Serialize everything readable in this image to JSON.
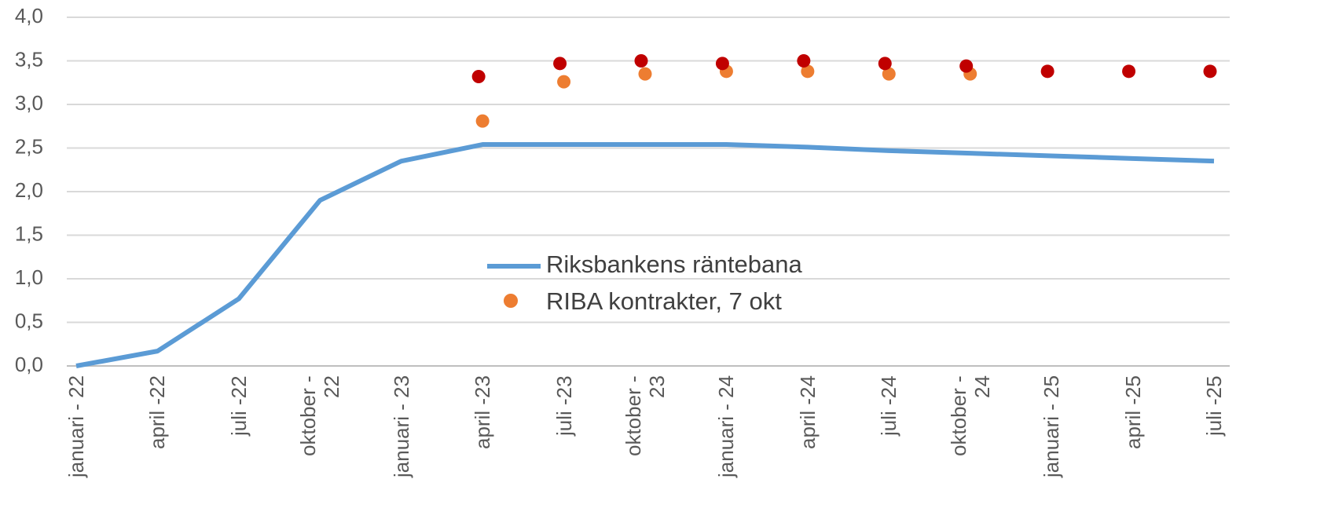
{
  "chart_data": {
    "type": "line",
    "categories": [
      "januari - 22",
      "april -22",
      "juli -22",
      "oktober - 22",
      "januari - 23",
      "april -23",
      "juli -23",
      "oktober - 23",
      "januari - 24",
      "april -24",
      "juli -24",
      "oktober - 24",
      "januari - 25",
      "april -25",
      "juli -25"
    ],
    "series": [
      {
        "name": "Riksbankens räntebana",
        "color": "#5b9bd5",
        "kind": "line",
        "values": [
          0,
          0.17,
          0.77,
          1.9,
          2.35,
          2.54,
          2.54,
          2.54,
          2.54,
          2.51,
          2.47,
          2.44,
          2.41,
          2.38,
          2.35
        ]
      },
      {
        "name": "RIBA kontrakter, 7 okt",
        "color": "#ed7d31",
        "kind": "dots",
        "values": [
          null,
          null,
          null,
          null,
          null,
          2.81,
          3.26,
          3.35,
          3.38,
          3.38,
          3.35,
          3.35,
          null,
          null,
          null
        ]
      },
      {
        "color": "#c00000",
        "kind": "dots",
        "values": [
          null,
          null,
          null,
          null,
          null,
          3.32,
          3.47,
          3.5,
          3.47,
          3.5,
          3.47,
          3.44,
          3.38,
          3.38,
          3.38
        ]
      }
    ],
    "ylim": [
      0,
      4
    ],
    "yticks": [
      {
        "value": 0,
        "label": "0,0"
      },
      {
        "value": 0.5,
        "label": "0,5"
      },
      {
        "value": 1,
        "label": "1,0"
      },
      {
        "value": 1.5,
        "label": "1,5"
      },
      {
        "value": 2,
        "label": "2,0"
      },
      {
        "value": 2.5,
        "label": "2,5"
      },
      {
        "value": 3,
        "label": "3,0"
      },
      {
        "value": 3.5,
        "label": "3,5"
      },
      {
        "value": 4,
        "label": "4,0"
      }
    ],
    "grid": true
  }
}
